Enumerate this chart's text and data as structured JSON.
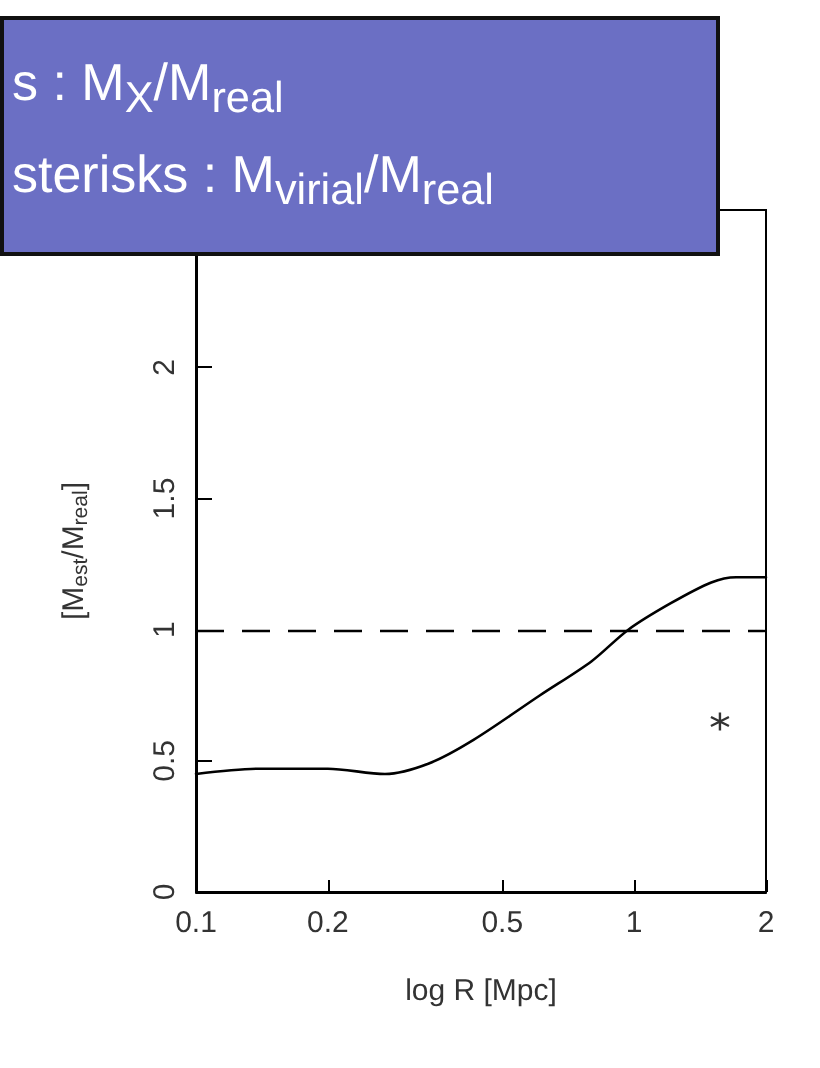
{
  "chart_data": {
    "type": "line",
    "xlabel": "log R [Mpc]",
    "ylabel": "[M$_{est}$/M$_{real}$]",
    "log": "x",
    "xlim": [
      0.1,
      2
    ],
    "xticks": [
      0.1,
      0.2,
      0.5,
      1,
      2
    ],
    "ylim": [
      0,
      2.6
    ],
    "yticks": [
      0,
      0.5,
      1,
      1.5,
      2
    ],
    "grid": false,
    "series": [
      {
        "color": "#000000",
        "line_style": "solid",
        "marker": "none",
        "x": [
          0.1,
          0.14,
          0.2,
          0.27,
          0.34,
          0.43,
          0.61,
          0.8,
          0.97,
          1.21,
          1.5,
          1.71,
          2
        ],
        "values": [
          0.45,
          0.47,
          0.47,
          0.45,
          0.49,
          0.58,
          0.75,
          0.88,
          1.0,
          1.1,
          1.18,
          1.2,
          1.2
        ]
      },
      {
        "type": "scatter",
        "color": "#000000",
        "marker": "cross",
        "x": [
          1.57
        ],
        "values": [
          0.65
        ]
      }
    ],
    "ref_lines": [
      {
        "axis": "y",
        "value": 1,
        "line_style": "dashed",
        "color": "#000000"
      }
    ],
    "annotations": [
      "s : M$_{X}$/M$_{real}$",
      "sterisks : M$_{virial}$/M$_{real}$"
    ]
  }
}
